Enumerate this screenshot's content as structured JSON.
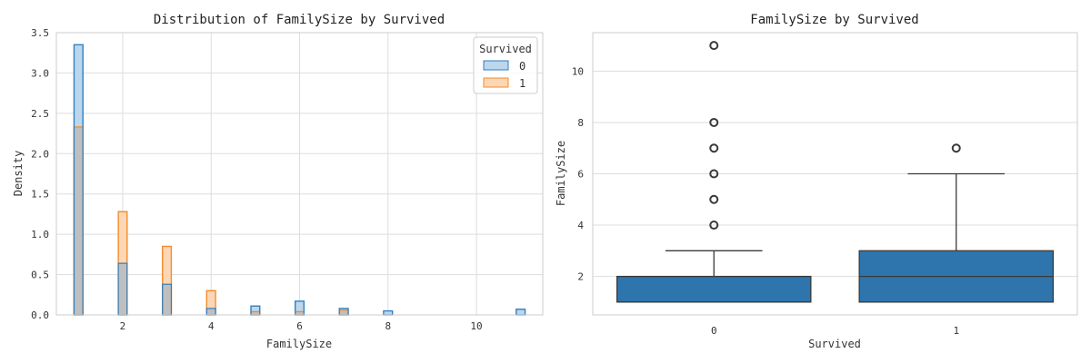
{
  "chart_data": [
    {
      "type": "histogram",
      "title": "Distribution of FamilySize by Survived",
      "xlabel": "FamilySize",
      "ylabel": "Density",
      "xlim": [
        0.5,
        11.5
      ],
      "ylim": [
        0,
        3.5
      ],
      "xticks": [
        2,
        4,
        6,
        8,
        10
      ],
      "yticks": [
        0.0,
        0.5,
        1.0,
        1.5,
        2.0,
        2.5,
        3.0,
        3.5
      ],
      "grid": true,
      "bin_width": 0.2,
      "legend": {
        "title": "Survived",
        "placement": "top-right",
        "entries": [
          {
            "label": "0",
            "fill": "#bcd6ec",
            "stroke": "#2f7fc1"
          },
          {
            "label": "1",
            "fill": "#fdd6b5",
            "stroke": "#f28b2a"
          }
        ]
      },
      "overlap_color": "#bfbfbf",
      "series": [
        {
          "values": [
            {
              "x": 1,
              "y": 3.35
            },
            {
              "x": 2,
              "y": 0.64
            },
            {
              "x": 3,
              "y": 0.38
            },
            {
              "x": 4,
              "y": 0.08
            },
            {
              "x": 5,
              "y": 0.11
            },
            {
              "x": 6,
              "y": 0.17
            },
            {
              "x": 7,
              "y": 0.08
            },
            {
              "x": 8,
              "y": 0.05
            },
            {
              "x": 11,
              "y": 0.07
            }
          ]
        },
        {
          "values": [
            {
              "x": 1,
              "y": 2.33
            },
            {
              "x": 2,
              "y": 1.28
            },
            {
              "x": 3,
              "y": 0.85
            },
            {
              "x": 4,
              "y": 0.3
            },
            {
              "x": 5,
              "y": 0.04
            },
            {
              "x": 6,
              "y": 0.04
            },
            {
              "x": 7,
              "y": 0.06
            }
          ]
        }
      ]
    },
    {
      "type": "box",
      "title": "FamilySize by Survived",
      "xlabel": "Survived",
      "ylabel": "FamilySize",
      "categories": [
        "0",
        "1"
      ],
      "ylim": [
        0.5,
        11.5
      ],
      "yticks": [
        2,
        4,
        6,
        8,
        10
      ],
      "grid": true,
      "box_color": "#2e75ad",
      "line_color": "#3a3a3a",
      "boxes": [
        {
          "category": "0",
          "whisker_low": 1,
          "q1": 1,
          "median": 1,
          "q3": 2,
          "whisker_high": 3,
          "outliers": [
            4,
            5,
            6,
            7,
            8,
            11
          ]
        },
        {
          "category": "1",
          "whisker_low": 1,
          "q1": 1,
          "median": 2,
          "q3": 3,
          "whisker_high": 6,
          "outliers": [
            7
          ]
        }
      ]
    }
  ]
}
